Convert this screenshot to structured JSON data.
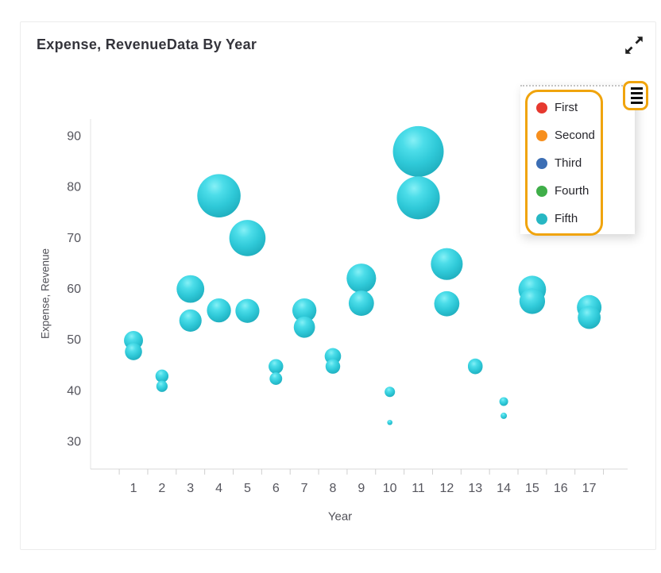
{
  "card": {
    "title": "Expense, RevenueData By Year"
  },
  "icons": {
    "expand": "expand-diagonal-arrows",
    "menu": "menu-list-lines"
  },
  "colors": {
    "focus_ring": "#f0a40d",
    "bubble": "#2fc9d8",
    "axis_line": "#dddddd",
    "tick_text": "#55555d"
  },
  "legend": {
    "items": [
      {
        "label": "First",
        "color": "#e6392f"
      },
      {
        "label": "Second",
        "color": "#f78f1e"
      },
      {
        "label": "Third",
        "color": "#3c6eb4"
      },
      {
        "label": "Fourth",
        "color": "#3fae49"
      },
      {
        "label": "Fifth",
        "color": "#27b7c3"
      }
    ]
  },
  "chart_data": {
    "type": "scatter",
    "subtype": "bubble",
    "title": "Expense, RevenueData By Year",
    "xlabel": "Year",
    "ylabel": "Expense, Revenue",
    "categories": [
      1,
      2,
      3,
      4,
      5,
      6,
      7,
      8,
      9,
      10,
      11,
      12,
      13,
      14,
      15,
      16,
      17
    ],
    "y_ticks": [
      30,
      40,
      50,
      60,
      70,
      80,
      90
    ],
    "ylim": [
      24.5,
      93
    ],
    "grid": false,
    "legend_position": "top-right",
    "series": [
      {
        "name": "Expense",
        "color": "#2fc9d8",
        "values": [
          49.8,
          42.8,
          59.9,
          78.2,
          69.9,
          44.7,
          55.7,
          46.7,
          62.0,
          39.7,
          86.9,
          64.8,
          44.8,
          37.8,
          59.8,
          null,
          56.3
        ]
      },
      {
        "name": "Revenue",
        "color": "#2fc9d8",
        "values": [
          47.6,
          40.8,
          53.7,
          55.7,
          55.6,
          42.3,
          52.4,
          44.7,
          57.1,
          33.7,
          77.8,
          57.0,
          44.6,
          35.0,
          57.5,
          null,
          54.3
        ]
      }
    ],
    "bubble_size_rule": "radius_px = 1.3 + 0.539 * (value - 30)"
  }
}
